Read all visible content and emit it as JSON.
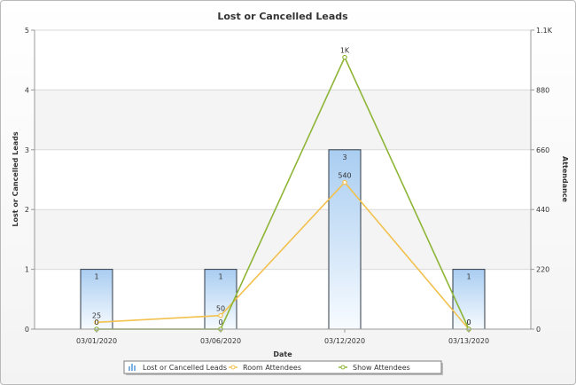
{
  "chart_data": {
    "type": "bar",
    "title": "Lost or Cancelled Leads",
    "xlabel": "Date",
    "ylabel": "Lost or Cancelled Leads",
    "y2label": "Attendance",
    "categories": [
      "03/01/2020",
      "03/06/2020",
      "03/12/2020",
      "03/13/2020"
    ],
    "ylim": [
      0,
      5
    ],
    "y2lim": [
      0,
      1100
    ],
    "yticks": [
      "0",
      "1",
      "2",
      "3",
      "4",
      "5"
    ],
    "y2ticks": [
      "0",
      "220",
      "440",
      "660",
      "880",
      "1.1K"
    ],
    "grid": true,
    "legend_position": "bottom",
    "series": [
      {
        "name": "Lost or Cancelled Leads",
        "type": "bar",
        "axis": "left",
        "values": [
          1,
          1,
          3,
          1
        ],
        "labels": [
          "1",
          "1",
          "3",
          "1"
        ],
        "color": "#7fb2e5"
      },
      {
        "name": "Room Attendees",
        "type": "line",
        "axis": "right",
        "values": [
          25,
          50,
          540,
          0
        ],
        "labels": [
          "25",
          "50",
          "540",
          "0"
        ],
        "color": "#f2c14e"
      },
      {
        "name": "Show Attendees",
        "type": "line",
        "axis": "right",
        "values": [
          0,
          0,
          1000,
          0
        ],
        "labels": [
          "0",
          "0",
          "1K",
          "0"
        ],
        "color": "#8db536"
      }
    ]
  }
}
